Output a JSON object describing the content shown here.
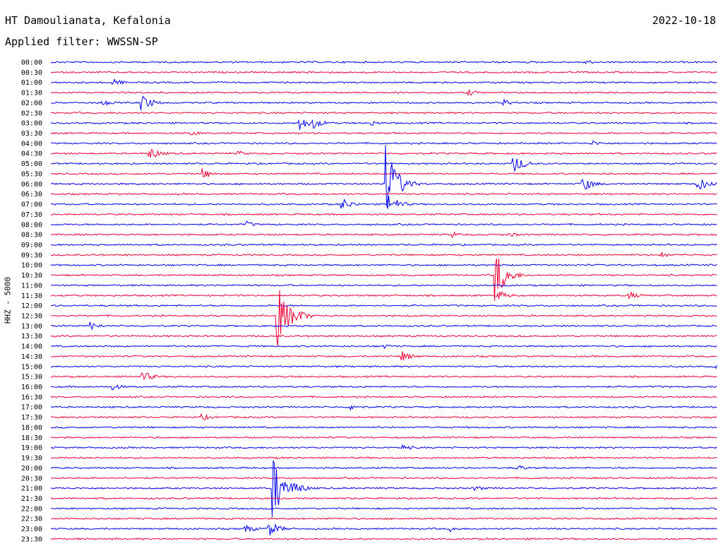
{
  "header": {
    "station": "HT Damoulianata, Kefalonia",
    "date": "2022-10-18",
    "filter": "Applied filter: WWSSN-SP"
  },
  "chart_data": {
    "type": "line",
    "title": "HT Damoulianata, Kefalonia",
    "date": "2022-10-18",
    "filter": "Applied filter: WWSSN-SP",
    "ylabel": "HHZ - 5000",
    "colors": {
      "odd_rows": "#0000ee",
      "even_rows": "#ee0033"
    },
    "row_labels": [
      "00:00",
      "00:30",
      "01:00",
      "01:30",
      "02:00",
      "02:30",
      "03:00",
      "03:30",
      "04:00",
      "04:30",
      "05:00",
      "05:30",
      "06:00",
      "06:30",
      "07:00",
      "07:30",
      "08:00",
      "08:30",
      "09:00",
      "09:30",
      "10:00",
      "10:30",
      "11:00",
      "11:30",
      "12:00",
      "12:30",
      "13:00",
      "13:30",
      "14:00",
      "14:30",
      "15:00",
      "15:30",
      "16:00",
      "16:30",
      "17:00",
      "17:30",
      "18:00",
      "18:30",
      "19:00",
      "19:30",
      "20:00",
      "20:30",
      "21:00",
      "21:30",
      "22:00",
      "22:30",
      "23:00",
      "23:30"
    ],
    "row_duration_minutes": 30,
    "events": [
      {
        "row": "00:00",
        "minute": 24.0,
        "amplitude": 4
      },
      {
        "row": "01:00",
        "minute": 2.8,
        "amplitude": 6
      },
      {
        "row": "01:30",
        "minute": 18.8,
        "amplitude": 5
      },
      {
        "row": "02:00",
        "minute": 2.3,
        "amplitude": 5
      },
      {
        "row": "02:00",
        "minute": 4.1,
        "amplitude": 12
      },
      {
        "row": "02:00",
        "minute": 20.4,
        "amplitude": 5
      },
      {
        "row": "03:00",
        "minute": 11.2,
        "amplitude": 10
      },
      {
        "row": "03:00",
        "minute": 11.8,
        "amplitude": 8
      },
      {
        "row": "03:00",
        "minute": 14.4,
        "amplitude": 4
      },
      {
        "row": "03:30",
        "minute": 6.3,
        "amplitude": 4
      },
      {
        "row": "04:00",
        "minute": 24.4,
        "amplitude": 4
      },
      {
        "row": "04:30",
        "minute": 4.4,
        "amplitude": 10
      },
      {
        "row": "04:30",
        "minute": 8.4,
        "amplitude": 4
      },
      {
        "row": "05:00",
        "minute": 20.8,
        "amplitude": 15
      },
      {
        "row": "05:30",
        "minute": 6.8,
        "amplitude": 8
      },
      {
        "row": "06:00",
        "minute": 15.1,
        "amplitude": 55
      },
      {
        "row": "06:00",
        "minute": 23.9,
        "amplitude": 12
      },
      {
        "row": "06:00",
        "minute": 29.1,
        "amplitude": 12
      },
      {
        "row": "07:00",
        "minute": 15.2,
        "amplitude": 14
      },
      {
        "row": "07:00",
        "minute": 13.1,
        "amplitude": 9
      },
      {
        "row": "08:00",
        "minute": 8.8,
        "amplitude": 5
      },
      {
        "row": "08:30",
        "minute": 18.1,
        "amplitude": 4
      },
      {
        "row": "08:30",
        "minute": 20.6,
        "amplitude": 4
      },
      {
        "row": "09:30",
        "minute": 27.5,
        "amplitude": 4
      },
      {
        "row": "10:30",
        "minute": 20.0,
        "amplitude": 38
      },
      {
        "row": "11:30",
        "minute": 20.1,
        "amplitude": 8
      },
      {
        "row": "11:30",
        "minute": 26.0,
        "amplitude": 6
      },
      {
        "row": "12:30",
        "minute": 10.2,
        "amplitude": 45
      },
      {
        "row": "12:30",
        "minute": 10.9,
        "amplitude": 15
      },
      {
        "row": "13:00",
        "minute": 1.8,
        "amplitude": 6
      },
      {
        "row": "14:30",
        "minute": 15.8,
        "amplitude": 8
      },
      {
        "row": "14:00",
        "minute": 14.9,
        "amplitude": 4
      },
      {
        "row": "15:30",
        "minute": 4.1,
        "amplitude": 9
      },
      {
        "row": "15:00",
        "minute": 29.9,
        "amplitude": 4
      },
      {
        "row": "16:00",
        "minute": 2.8,
        "amplitude": 5
      },
      {
        "row": "17:00",
        "minute": 13.5,
        "amplitude": 5
      },
      {
        "row": "17:30",
        "minute": 6.8,
        "amplitude": 5
      },
      {
        "row": "19:00",
        "minute": 15.8,
        "amplitude": 5
      },
      {
        "row": "20:00",
        "minute": 21.0,
        "amplitude": 5
      },
      {
        "row": "21:00",
        "minute": 10.0,
        "amplitude": 45
      },
      {
        "row": "21:00",
        "minute": 11.0,
        "amplitude": 10
      },
      {
        "row": "21:00",
        "minute": 19.1,
        "amplitude": 4
      },
      {
        "row": "23:00",
        "minute": 8.7,
        "amplitude": 7
      },
      {
        "row": "23:00",
        "minute": 9.8,
        "amplitude": 12
      },
      {
        "row": "23:00",
        "minute": 18.0,
        "amplitude": 4
      }
    ]
  }
}
